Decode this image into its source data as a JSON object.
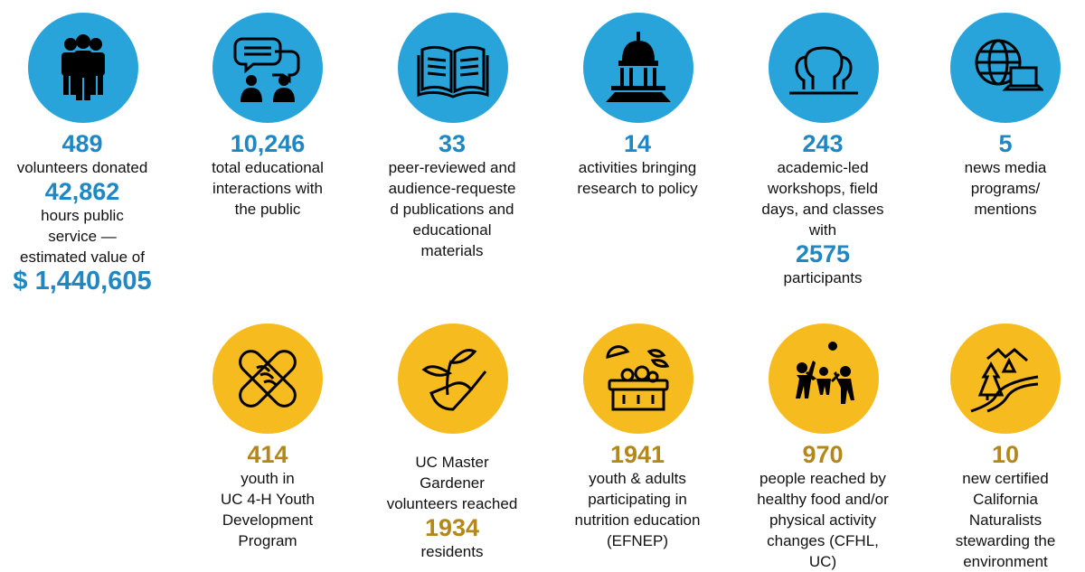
{
  "colors": {
    "blue_circle": "#29a4da",
    "gold_circle": "#f6bb1e",
    "blue_number": "#1f87c4",
    "gold_number": "#b3871b"
  },
  "top": [
    {
      "icon": "volunteers-icon",
      "number": "489",
      "desc": "volunteers donated",
      "number2": "42,862",
      "desc2": [
        "hours public",
        "service —",
        "estimated value of"
      ],
      "number3": "$ 1,440,605"
    },
    {
      "icon": "conversation-icon",
      "number": "10,246",
      "desc": [
        "total educational",
        "interactions with",
        "the public"
      ]
    },
    {
      "icon": "open-book-icon",
      "number": "33",
      "desc": [
        "peer-reviewed and",
        "audience-requeste",
        "d publications and",
        "educational",
        "materials"
      ]
    },
    {
      "icon": "capitol-icon",
      "number": "14",
      "desc": [
        "activities bringing",
        "research to policy"
      ]
    },
    {
      "icon": "group-icon",
      "number": "243",
      "desc": [
        "academic-led",
        "workshops, field",
        "days, and classes",
        "with"
      ],
      "number2": "2575",
      "desc2": "participants"
    },
    {
      "icon": "globe-laptop-icon",
      "number": "5",
      "desc": [
        "news media",
        "programs/",
        "mentions"
      ]
    }
  ],
  "bottom": [
    {
      "icon": "hands-icon",
      "number": "414",
      "desc": [
        "youth in",
        "UC 4-H Youth",
        "Development",
        "Program"
      ]
    },
    {
      "icon": "trowel-seedling-icon",
      "pre": [
        "UC Master",
        "Gardener",
        "volunteers reached"
      ],
      "number": "1934",
      "desc": "residents"
    },
    {
      "icon": "food-bowl-icon",
      "number": "1941",
      "desc": [
        "youth & adults",
        "participating in",
        "nutrition education",
        "(EFNEP)"
      ]
    },
    {
      "icon": "kids-playing-icon",
      "number": "970",
      "desc": [
        "people reached by",
        "healthy food and/or",
        "physical activity",
        "changes (CFHL,",
        "UC)"
      ]
    },
    {
      "icon": "nature-landscape-icon",
      "number": "10",
      "desc": [
        "new certified",
        "California",
        "Naturalists",
        "stewarding the",
        "environment"
      ]
    }
  ]
}
